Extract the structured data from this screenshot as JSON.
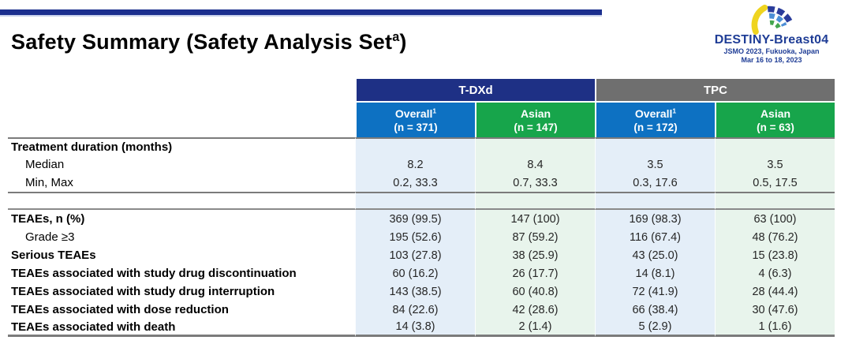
{
  "slide": {
    "title": "Safety Summary (Safety Analysis Set",
    "title_sup": "a",
    "title_close": ")"
  },
  "logo": {
    "name": "DESTINY-Breast04",
    "line1": "JSMO 2023, Fukuoka, Japan",
    "line2": "Mar 16 to 18, 2023",
    "icon": "fan-arc-logo",
    "colors": {
      "navy_text": "#1F3D96",
      "arc_yellow": "#EFD41F",
      "arc_dark_blue": "#2A3C9B",
      "arc_mid_blue": "#4C8FD6",
      "arc_green": "#44A64F"
    }
  },
  "colors": {
    "top_bar": "#1B2F8E",
    "group_tdxd": "#1E3085",
    "group_tpc": "#6F6F6F",
    "col_overall": "#0D71C2",
    "col_asian": "#17A54B",
    "body_overall": "#E4EEF8",
    "body_asian": "#E8F4EC",
    "rule": "#7B7B7B"
  },
  "table": {
    "groups": [
      {
        "label": "T-DXd"
      },
      {
        "label": "TPC"
      }
    ],
    "columns": [
      {
        "label": "Overall",
        "sup": "1",
        "n": "(n = 371)",
        "tone": "blue"
      },
      {
        "label": "Asian",
        "sup": "",
        "n": "(n = 147)",
        "tone": "green"
      },
      {
        "label": "Overall",
        "sup": "1",
        "n": "(n = 172)",
        "tone": "blue"
      },
      {
        "label": "Asian",
        "sup": "",
        "n": "(n = 63)",
        "tone": "green"
      }
    ],
    "rows": [
      {
        "label": "Treatment duration (months)",
        "bold": true,
        "indent": false,
        "values": [
          "",
          "",
          "",
          ""
        ]
      },
      {
        "label": "Median",
        "bold": false,
        "indent": true,
        "values": [
          "8.2",
          "8.4",
          "3.5",
          "3.5"
        ]
      },
      {
        "label": "Min, Max",
        "bold": false,
        "indent": true,
        "values": [
          "0.2, 33.3",
          "0.7, 33.3",
          "0.3, 17.6",
          "0.5, 17.5"
        ]
      },
      {
        "type": "spacer",
        "label": "",
        "values": [
          "",
          "",
          "",
          ""
        ]
      },
      {
        "label": "TEAEs, n (%)",
        "bold": true,
        "indent": false,
        "values": [
          "369 (99.5)",
          "147 (100)",
          "169 (98.3)",
          "63 (100)"
        ]
      },
      {
        "label": "Grade ≥3",
        "bold": false,
        "indent": true,
        "values": [
          "195 (52.6)",
          "87 (59.2)",
          "116 (67.4)",
          "48 (76.2)"
        ]
      },
      {
        "label": "Serious TEAEs",
        "bold": true,
        "indent": false,
        "values": [
          "103 (27.8)",
          "38 (25.9)",
          "43 (25.0)",
          "15 (23.8)"
        ]
      },
      {
        "label": "TEAEs associated with study drug discontinuation",
        "bold": true,
        "indent": false,
        "values": [
          "60 (16.2)",
          "26 (17.7)",
          "14 (8.1)",
          "4 (6.3)"
        ]
      },
      {
        "label": "TEAEs associated with study drug interruption",
        "bold": true,
        "indent": false,
        "values": [
          "143 (38.5)",
          "60 (40.8)",
          "72 (41.9)",
          "28 (44.4)"
        ]
      },
      {
        "label": "TEAEs associated with dose reduction",
        "bold": true,
        "indent": false,
        "values": [
          "84 (22.6)",
          "42 (28.6)",
          "66 (38.4)",
          "30 (47.6)"
        ]
      },
      {
        "label": "TEAEs associated with death",
        "bold": true,
        "indent": false,
        "values": [
          "14 (3.8)",
          "2 (1.4)",
          "5 (2.9)",
          "1 (1.6)"
        ]
      }
    ]
  }
}
